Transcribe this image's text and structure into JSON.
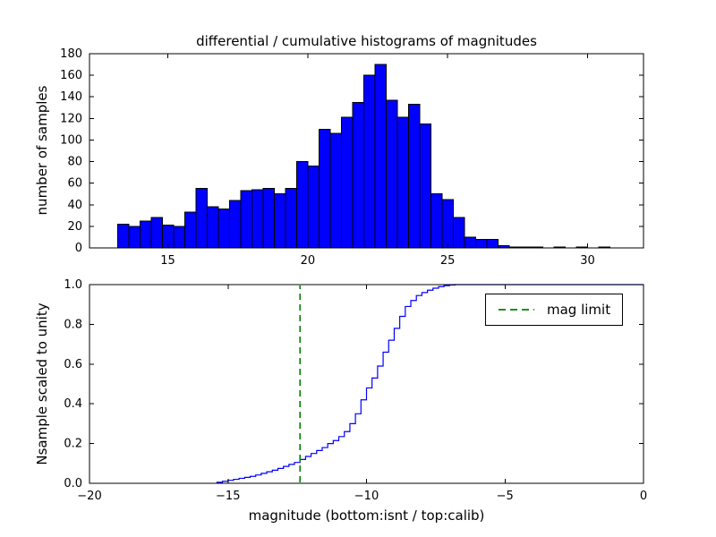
{
  "figure": {
    "background": "#ffffff",
    "colors": {
      "bar_fill": "#0000ff",
      "bar_edge": "#000000",
      "cumulative_line": "#0000ff",
      "mag_limit_line": "#008000",
      "axes": "#000000"
    }
  },
  "chart_data": [
    {
      "type": "bar",
      "title": "differential / cumulative histograms of magnitudes",
      "ylabel": "number of samples",
      "xlim": [
        12.2,
        32.0
      ],
      "ylim": [
        0,
        180
      ],
      "xticks": [
        15,
        20,
        25,
        30
      ],
      "xtick_labels": [
        "15",
        "20",
        "25",
        "30"
      ],
      "yticks": [
        0,
        20,
        40,
        60,
        80,
        100,
        120,
        140,
        160,
        180
      ],
      "ytick_labels": [
        "0",
        "20",
        "40",
        "60",
        "80",
        "100",
        "120",
        "140",
        "160",
        "180"
      ],
      "grid": false,
      "bins": {
        "start": 13.2,
        "width": 0.4
      },
      "values": [
        22,
        20,
        25,
        28,
        21,
        20,
        33,
        55,
        38,
        36,
        44,
        53,
        54,
        55,
        50,
        55,
        80,
        76,
        110,
        106,
        121,
        135,
        160,
        170,
        137,
        121,
        133,
        115,
        50,
        45,
        28,
        10,
        8,
        8,
        2,
        1,
        1,
        1,
        0,
        1,
        0,
        1,
        0,
        1
      ]
    },
    {
      "type": "line",
      "subtype": "cumulative-step",
      "xlabel": "magnitude (bottom:isnt / top:calib)",
      "ylabel": "Nsample scaled to unity",
      "xlim": [
        -20,
        0
      ],
      "ylim": [
        0,
        1.0
      ],
      "xticks": [
        -20,
        -15,
        -10,
        -5,
        0
      ],
      "xtick_labels": [
        "−20",
        "−15",
        "−10",
        "−5",
        "0"
      ],
      "yticks": [
        0,
        0.2,
        0.4,
        0.6,
        0.8,
        1.0
      ],
      "ytick_labels": [
        "0.0",
        "0.2",
        "0.4",
        "0.6",
        "0.8",
        "1.0"
      ],
      "grid": false,
      "mag_limit": -12.4,
      "legend": {
        "label": "mag limit",
        "position": "upper right"
      },
      "cumulative": {
        "x": [
          -15.4,
          -15.2,
          -15.0,
          -14.8,
          -14.6,
          -14.4,
          -14.2,
          -14.0,
          -13.8,
          -13.6,
          -13.4,
          -13.2,
          -13.0,
          -12.8,
          -12.6,
          -12.4,
          -12.2,
          -12.0,
          -11.8,
          -11.6,
          -11.4,
          -11.2,
          -11.0,
          -10.8,
          -10.6,
          -10.4,
          -10.2,
          -10.0,
          -9.8,
          -9.6,
          -9.4,
          -9.2,
          -9.0,
          -8.8,
          -8.6,
          -8.4,
          -8.2,
          -8.0,
          -7.8,
          -7.6,
          -7.4,
          -7.2,
          -7.0,
          -6.8
        ],
        "y": [
          0.005,
          0.01,
          0.015,
          0.02,
          0.025,
          0.03,
          0.035,
          0.042,
          0.05,
          0.058,
          0.066,
          0.075,
          0.085,
          0.095,
          0.105,
          0.12,
          0.135,
          0.15,
          0.165,
          0.18,
          0.2,
          0.215,
          0.235,
          0.26,
          0.3,
          0.35,
          0.42,
          0.48,
          0.53,
          0.59,
          0.66,
          0.72,
          0.78,
          0.84,
          0.89,
          0.92,
          0.945,
          0.96,
          0.972,
          0.982,
          0.99,
          0.995,
          0.998,
          1.0
        ]
      }
    }
  ]
}
